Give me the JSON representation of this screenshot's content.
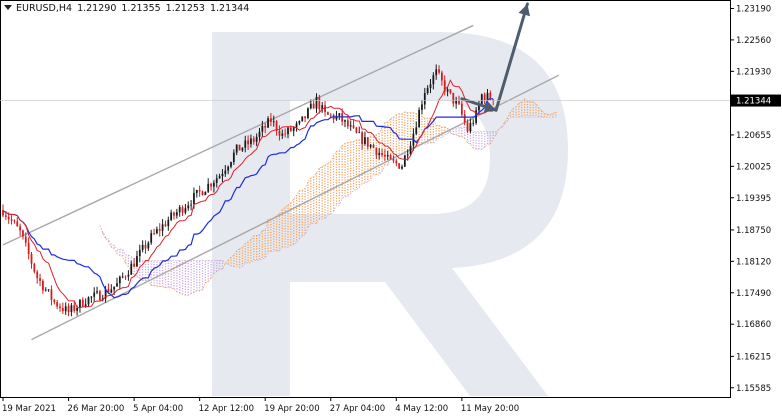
{
  "header": {
    "symbol": "EURUSD,H4",
    "open": "1.21290",
    "high": "1.21355",
    "low": "1.21253",
    "close": "1.21344"
  },
  "colors": {
    "bull": "#1a1a1a",
    "bear": "#d21e1e",
    "kijun": "#1c2ee0",
    "tenkan": "#e0202a",
    "cloud_bull": "#f2a25e",
    "cloud_bear": "#c9a7dd",
    "channel": "#a8a8a8",
    "forecast_arrow": "#4e5c6e",
    "price_tag": "#000000",
    "watermark": "#e6e9f0"
  },
  "icons": {
    "symbol_menu": "triangle-down-icon",
    "watermark": "broker-logo-watermark"
  },
  "chart_data": {
    "type": "candlestick",
    "series": [
      {
        "name": "EURUSD,H4"
      }
    ],
    "y_ticks": [
      1.2319,
      1.2256,
      1.2193,
      1.20655,
      1.20025,
      1.19395,
      1.1875,
      1.1812,
      1.1749,
      1.1686,
      1.16215,
      1.15585
    ],
    "y_tick_labels": [
      "1.23190",
      "1.22560",
      "1.21930",
      "1.20655",
      "1.20025",
      "1.19395",
      "1.18750",
      "1.18120",
      "1.17490",
      "1.16860",
      "1.16215",
      "1.15585"
    ],
    "ylim": [
      1.154,
      1.2336
    ],
    "current_price": 1.21344,
    "current_price_label": "1.21344",
    "x_ticks": [
      "19 Mar 2021",
      "26 Mar 20:00",
      "5 Apr 04:00",
      "12 Apr 12:00",
      "19 Apr 20:00",
      "27 Apr 04:00",
      "4 May 12:00",
      "11 May 20:00"
    ],
    "x_tick_bars": [
      0,
      23,
      46,
      69,
      92,
      115,
      138,
      161
    ],
    "bar_count": 195,
    "close_anchors": [
      [
        0,
        1.1915
      ],
      [
        6,
        1.187
      ],
      [
        12,
        1.178
      ],
      [
        18,
        1.173
      ],
      [
        23,
        1.171
      ],
      [
        29,
        1.1735
      ],
      [
        34,
        1.1745
      ],
      [
        40,
        1.1765
      ],
      [
        46,
        1.181
      ],
      [
        52,
        1.186
      ],
      [
        58,
        1.1895
      ],
      [
        64,
        1.1925
      ],
      [
        70,
        1.1955
      ],
      [
        76,
        1.1985
      ],
      [
        82,
        1.2035
      ],
      [
        88,
        1.2055
      ],
      [
        94,
        1.2095
      ],
      [
        98,
        1.2065
      ],
      [
        104,
        1.2085
      ],
      [
        110,
        1.2135
      ],
      [
        113,
        1.2105
      ],
      [
        118,
        1.21
      ],
      [
        124,
        1.2065
      ],
      [
        130,
        1.204
      ],
      [
        136,
        1.201
      ],
      [
        140,
        1.2005
      ],
      [
        144,
        1.207
      ],
      [
        148,
        1.2155
      ],
      [
        152,
        1.219
      ],
      [
        156,
        1.215
      ],
      [
        160,
        1.212
      ],
      [
        163,
        1.2075
      ],
      [
        166,
        1.2105
      ],
      [
        168,
        1.2145
      ],
      [
        172,
        1.2138
      ]
    ],
    "ichimoku": {
      "tenkan_period": 9,
      "kijun_period": 26,
      "senkou_period": 52
    },
    "channel": {
      "upper": [
        [
          0,
          1.1845
        ],
        [
          165,
          1.2285
        ]
      ],
      "lower": [
        [
          10,
          1.1655
        ],
        [
          195,
          1.2185
        ]
      ]
    },
    "forecast": [
      [
        161,
        1.2138
      ],
      [
        173,
        1.2115
      ],
      [
        184,
        1.2328
      ]
    ]
  }
}
